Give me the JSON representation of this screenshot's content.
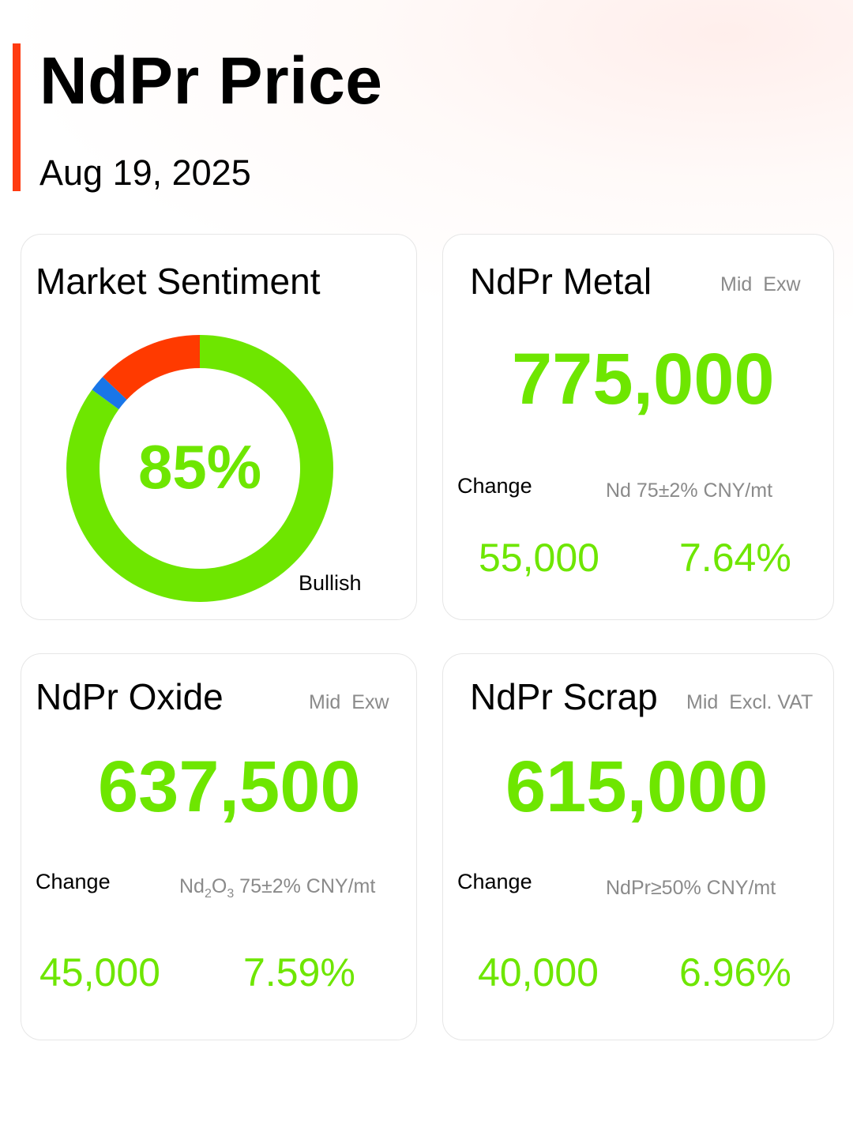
{
  "header": {
    "title": "NdPr Price",
    "date": "Aug 19, 2025"
  },
  "sentiment": {
    "title": "Market Sentiment",
    "percent_label": "85%",
    "mood_label": "Bullish",
    "shares": {
      "bullish": 85,
      "neutral": 2,
      "bearish": 13
    },
    "colors": {
      "bullish": "#6ee600",
      "neutral": "#1976e8",
      "bearish": "#ff3a00"
    }
  },
  "metal": {
    "title": "NdPr Metal",
    "tag_mid": "Mid",
    "tag_basis": "Exw",
    "price": "775,000",
    "change_label": "Change",
    "spec": "Nd 75±2% CNY/mt",
    "change_abs": "55,000",
    "change_pct": "7.64%"
  },
  "oxide": {
    "title": "NdPr Oxide",
    "tag_mid": "Mid",
    "tag_basis": "Exw",
    "price": "637,500",
    "change_label": "Change",
    "spec_base": "Nd",
    "spec_sub1": "2",
    "spec_mid": "O",
    "spec_sub2": "3",
    "spec_rest": " 75±2% CNY/mt",
    "change_abs": "45,000",
    "change_pct": "7.59%"
  },
  "scrap": {
    "title": "NdPr Scrap",
    "tag_mid": "Mid",
    "tag_basis": "Excl. VAT",
    "price": "615,000",
    "change_label": "Change",
    "spec": "NdPr≥50% CNY/mt",
    "change_abs": "40,000",
    "change_pct": "6.96%"
  },
  "theme": {
    "accent": "#ff3b10",
    "positive": "#6ee600",
    "muted": "#8a8a8a"
  }
}
